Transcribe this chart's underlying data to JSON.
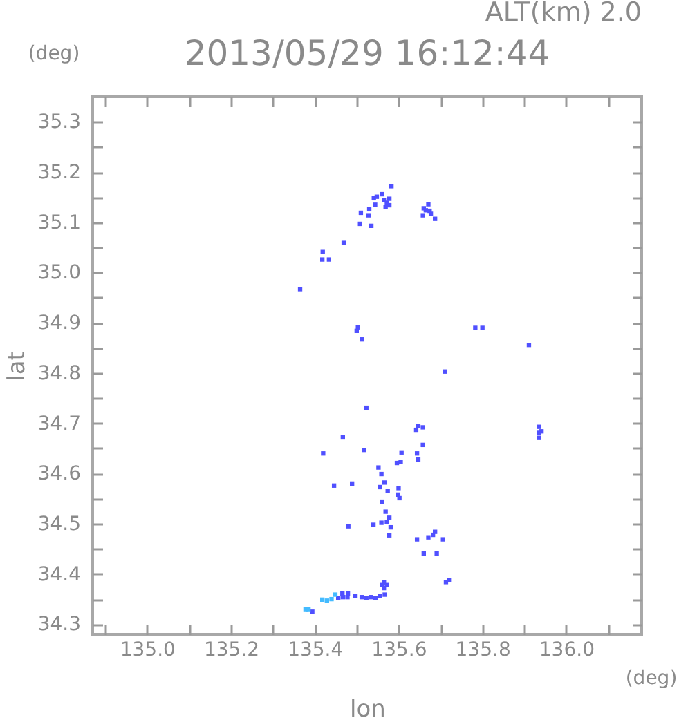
{
  "chart_data": {
    "type": "scatter",
    "title": "2013/05/29 16:12:44",
    "subtitle": "ALT(km) 2.0",
    "xlabel": "lon",
    "ylabel": "lat",
    "annotations": [
      "(deg)",
      "(deg)"
    ],
    "xlim": [
      134.87,
      136.18
    ],
    "ylim": [
      34.28,
      35.35
    ],
    "xticks": [
      {
        "value": 134.9,
        "label": null
      },
      {
        "value": 135,
        "label": "135.0"
      },
      {
        "value": 135.1,
        "label": null
      },
      135.2,
      {
        "value": 135.3,
        "label": null
      },
      135.4,
      {
        "value": 135.5,
        "label": null
      },
      135.6,
      {
        "value": 135.7,
        "label": null
      },
      135.8,
      {
        "value": 135.9,
        "label": null
      },
      {
        "value": 136,
        "label": "136.0"
      },
      {
        "value": 136.1,
        "label": null
      }
    ],
    "yticks": [
      34.3,
      {
        "value": 34.35,
        "label": null
      },
      34.4,
      {
        "value": 34.45,
        "label": null
      },
      34.5,
      {
        "value": 34.55,
        "label": null
      },
      34.6,
      {
        "value": 34.65,
        "label": null
      },
      34.7,
      {
        "value": 34.75,
        "label": null
      },
      34.8,
      {
        "value": 34.85,
        "label": null
      },
      34.9,
      {
        "value": 34.95,
        "label": null
      },
      {
        "value": 35,
        "label": "35.0"
      },
      {
        "value": 35.05,
        "label": null
      },
      35.1,
      {
        "value": 35.15,
        "label": null
      },
      35.2,
      {
        "value": 35.25,
        "label": null
      },
      35.3
    ],
    "marker": "square",
    "series": [
      {
        "color": "#5050ff",
        "x": [
          135.583,
          135.541,
          135.548,
          135.561,
          135.572,
          135.565,
          135.578,
          135.569,
          135.578,
          135.544,
          135.53,
          135.51,
          135.528,
          135.508,
          135.535,
          135.671,
          135.665,
          135.658,
          135.687,
          135.66,
          135.674,
          135.677,
          135.469,
          135.419,
          135.418,
          135.434,
          135.365,
          135.5,
          135.503,
          135.513,
          135.783,
          135.8,
          135.911,
          135.711,
          135.523,
          135.658,
          135.647,
          135.642,
          135.935,
          135.935,
          135.935,
          135.941,
          135.467,
          135.42,
          135.517,
          135.658,
          135.644,
          135.647,
          135.607,
          135.596,
          135.605,
          135.552,
          135.559,
          135.446,
          135.489,
          135.566,
          135.556,
          135.574,
          135.6,
          135.602,
          135.598,
          135.561,
          135.569,
          135.578,
          135.581,
          135.572,
          135.54,
          135.559,
          135.48,
          135.578,
          135.644,
          135.682,
          135.687,
          135.671,
          135.706,
          135.66,
          135.691,
          135.713,
          135.72,
          135.561,
          135.572,
          135.565,
          135.565,
          135.467,
          135.478,
          135.456,
          135.466,
          135.479,
          135.497,
          135.512,
          135.523,
          135.534,
          135.545,
          135.556,
          135.567,
          135.394
        ],
        "values": [
          35.172,
          35.148,
          35.151,
          35.156,
          35.139,
          35.144,
          35.134,
          35.131,
          35.147,
          35.135,
          35.126,
          35.119,
          35.114,
          35.097,
          35.093,
          35.136,
          35.124,
          35.114,
          35.107,
          35.128,
          35.123,
          35.117,
          35.059,
          35.041,
          35.026,
          35.026,
          34.967,
          34.884,
          34.891,
          34.867,
          34.89,
          34.89,
          34.856,
          34.803,
          34.731,
          34.692,
          34.695,
          34.687,
          34.681,
          34.693,
          34.671,
          34.684,
          34.672,
          34.64,
          34.647,
          34.657,
          34.64,
          34.628,
          34.642,
          34.621,
          34.623,
          34.612,
          34.599,
          34.576,
          34.58,
          34.582,
          34.573,
          34.565,
          34.571,
          34.551,
          34.558,
          34.544,
          34.524,
          34.512,
          34.493,
          34.503,
          34.498,
          34.502,
          34.495,
          34.477,
          34.469,
          34.478,
          34.484,
          34.473,
          34.469,
          34.441,
          34.441,
          34.384,
          34.388,
          34.378,
          34.378,
          34.383,
          34.372,
          34.354,
          34.354,
          34.352,
          34.361,
          34.361,
          34.356,
          34.354,
          34.352,
          34.354,
          34.352,
          34.356,
          34.359,
          34.325
        ]
      },
      {
        "color": "#44bbff",
        "x": [
          135.44,
          135.429,
          135.418,
          135.449,
          135.385,
          135.378
        ],
        "values": [
          34.35,
          34.347,
          34.349,
          34.359,
          34.33,
          34.33
        ]
      }
    ]
  }
}
